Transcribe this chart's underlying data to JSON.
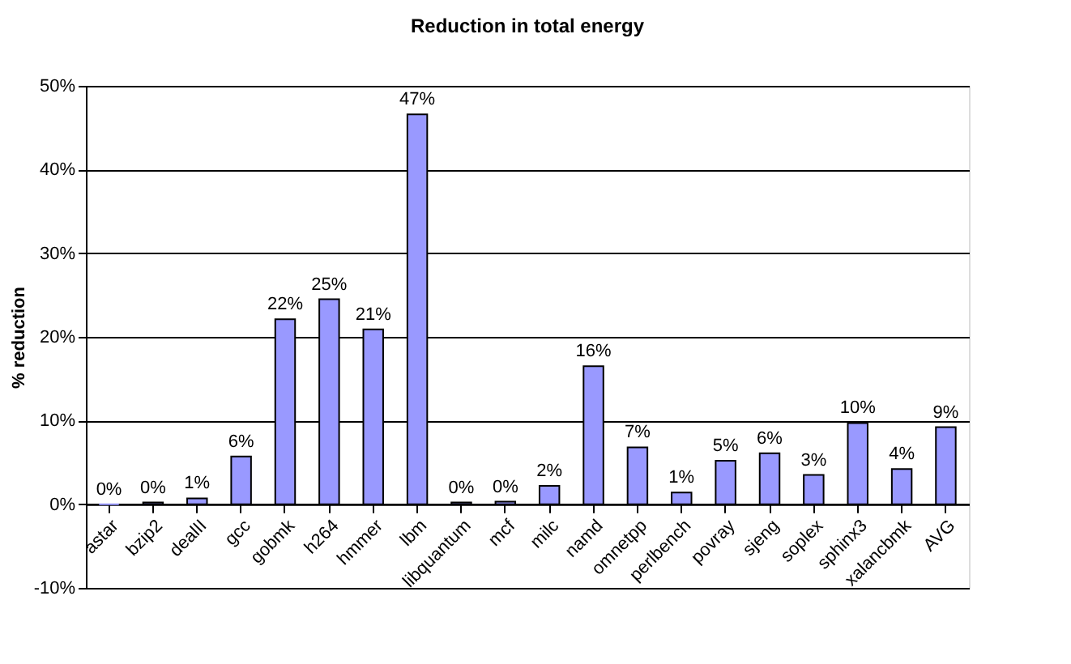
{
  "chart_data": {
    "type": "bar",
    "title": "Reduction in total energy",
    "ylabel": "% reduction",
    "categories": [
      "astar",
      "bzip2",
      "dealII",
      "gcc",
      "gobmk",
      "h264",
      "hmmer",
      "lbm",
      "libquantum",
      "mcf",
      "milc",
      "namd",
      "omnetpp",
      "perlbench",
      "povray",
      "sjeng",
      "soplex",
      "sphinx3",
      "xalancbmk",
      "AVG"
    ],
    "values": [
      0,
      0.2,
      0.7,
      5.7,
      22.1,
      24.5,
      20.9,
      46.6,
      0.2,
      0.3,
      2.2,
      16.5,
      6.8,
      1.4,
      5.2,
      6.1,
      3.5,
      9.7,
      4.2,
      9.2
    ],
    "value_labels": [
      "0%",
      "0%",
      "1%",
      "6%",
      "22%",
      "25%",
      "21%",
      "47%",
      "0%",
      "0%",
      "2%",
      "16%",
      "7%",
      "1%",
      "5%",
      "6%",
      "3%",
      "10%",
      "4%",
      "9%"
    ],
    "color": "#9999ff",
    "ylim": [
      -10,
      50
    ],
    "yticks": [
      {
        "value": -10,
        "label": "-10%"
      },
      {
        "value": 0,
        "label": "0%"
      },
      {
        "value": 10,
        "label": "10%"
      },
      {
        "value": 20,
        "label": "20%"
      },
      {
        "value": 30,
        "label": "30%"
      },
      {
        "value": 40,
        "label": "40%"
      },
      {
        "value": 50,
        "label": "50%"
      }
    ],
    "grid": "y"
  }
}
